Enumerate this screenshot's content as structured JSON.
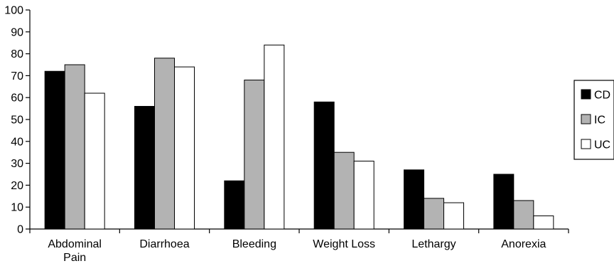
{
  "chart_data": {
    "type": "bar",
    "title": "",
    "xlabel": "",
    "ylabel": "",
    "ylim": [
      0,
      100
    ],
    "yticks": [
      0,
      10,
      20,
      30,
      40,
      50,
      60,
      70,
      80,
      90,
      100
    ],
    "grid": false,
    "legend_position": "right",
    "categories": [
      "Abdominal Pain",
      "Diarrhoea",
      "Bleeding",
      "Weight Loss",
      "Lethargy",
      "Anorexia"
    ],
    "series": [
      {
        "name": "CD",
        "color": "#000000",
        "values": [
          72,
          56,
          22,
          58,
          27,
          25
        ]
      },
      {
        "name": "IC",
        "color": "#b3b3b3",
        "values": [
          75,
          78,
          68,
          35,
          14,
          13
        ]
      },
      {
        "name": "UC",
        "color": "#ffffff",
        "values": [
          62,
          74,
          84,
          31,
          12,
          6
        ]
      }
    ]
  }
}
